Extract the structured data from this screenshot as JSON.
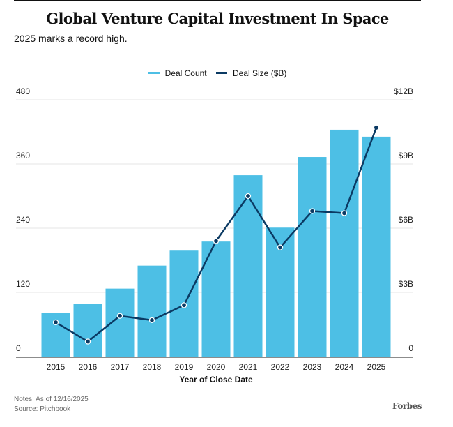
{
  "chart_data": {
    "type": "bar+line",
    "title": "Global Venture Capital Investment In Space",
    "subtitle": "2025 marks a record high.",
    "xlabel": "Year of Close Date",
    "categories": [
      "2015",
      "2016",
      "2017",
      "2018",
      "2019",
      "2020",
      "2021",
      "2022",
      "2023",
      "2024",
      "2025"
    ],
    "series": [
      {
        "name": "Deal Count",
        "type": "bar",
        "axis": "left",
        "color": "#4dbfe5",
        "values": [
          81,
          98,
          127,
          170,
          198,
          215,
          339,
          241,
          373,
          424,
          411
        ]
      },
      {
        "name": "Deal Size ($B)",
        "type": "line",
        "axis": "right",
        "color": "#0b3a63",
        "values": [
          1.6,
          0.7,
          1.9,
          1.7,
          2.4,
          5.4,
          7.5,
          5.1,
          6.8,
          6.7,
          10.7
        ]
      }
    ],
    "y_left": {
      "ylim": [
        0,
        480
      ],
      "ticks": [
        0,
        120,
        240,
        360,
        480
      ],
      "tick_labels": [
        "0",
        "120",
        "240",
        "360",
        "480"
      ]
    },
    "y_right": {
      "ylim": [
        0,
        12
      ],
      "ticks": [
        0,
        3,
        6,
        9,
        12
      ],
      "tick_labels": [
        "0",
        "$3B",
        "$6B",
        "$9B",
        "$12B"
      ]
    },
    "grid": true,
    "legend_placement": "top-center"
  },
  "footer": {
    "notes": "Notes: As of 12/16/2025",
    "source": "Source: Pitchbook",
    "brand": "Forbes"
  }
}
